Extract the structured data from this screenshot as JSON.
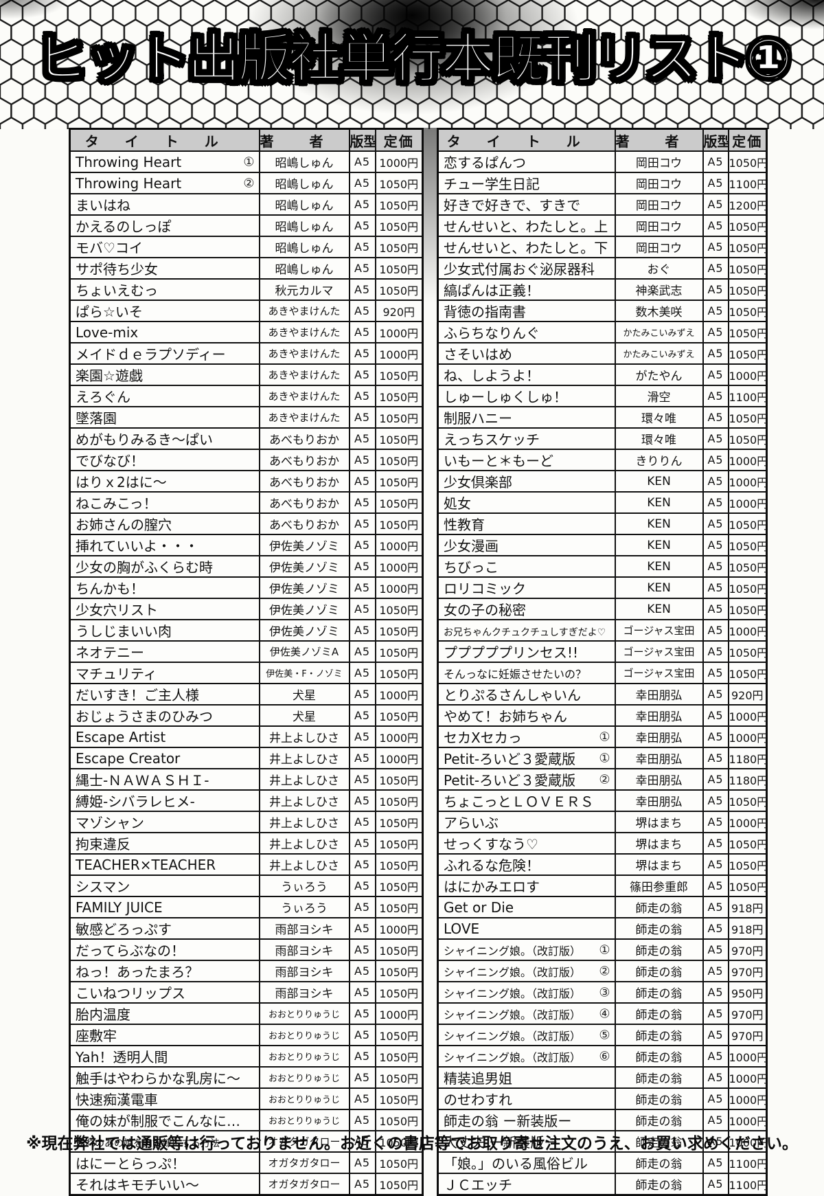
{
  "page_title": "ヒット出版社単行本既刊リスト①",
  "footer_note": "※現在弊社では通販等は行っておりません。お近くの書店等でお取り寄せ注文のうえ、お買い求めください。",
  "tables": {
    "headers": {
      "title": "タイトル",
      "author": "著者",
      "format": "版型",
      "price": "定価"
    },
    "left_rows": [
      {
        "title": "Throwing Heart",
        "vol": "①",
        "author": "昭嶋しゅん",
        "format": "A5",
        "price": "1000円"
      },
      {
        "title": "Throwing Heart",
        "vol": "②",
        "author": "昭嶋しゅん",
        "format": "A5",
        "price": "1050円"
      },
      {
        "title": "まいはね",
        "vol": "",
        "author": "昭嶋しゅん",
        "format": "A5",
        "price": "1050円"
      },
      {
        "title": "かえるのしっぽ",
        "vol": "",
        "author": "昭嶋しゅん",
        "format": "A5",
        "price": "1050円"
      },
      {
        "title": "モバ♡コイ",
        "vol": "",
        "author": "昭嶋しゅん",
        "format": "A5",
        "price": "1050円"
      },
      {
        "title": "サポ待ち少女",
        "vol": "",
        "author": "昭嶋しゅん",
        "format": "A5",
        "price": "1050円"
      },
      {
        "title": "ちょいえむっ",
        "vol": "",
        "author": "秋元カルマ",
        "format": "A5",
        "price": "1050円"
      },
      {
        "title": "ぱら☆いそ",
        "vol": "",
        "author": "あきやまけんた",
        "format": "A5",
        "price": "920円"
      },
      {
        "title": "Love-mix",
        "vol": "",
        "author": "あきやまけんた",
        "format": "A5",
        "price": "1000円"
      },
      {
        "title": "メイドｄｅラプソディー",
        "vol": "",
        "author": "あきやまけんた",
        "format": "A5",
        "price": "1000円"
      },
      {
        "title": "楽園☆遊戯",
        "vol": "",
        "author": "あきやまけんた",
        "format": "A5",
        "price": "1050円"
      },
      {
        "title": "えろぐん",
        "vol": "",
        "author": "あきやまけんた",
        "format": "A5",
        "price": "1050円"
      },
      {
        "title": "墜落園",
        "vol": "",
        "author": "あきやまけんた",
        "format": "A5",
        "price": "1050円"
      },
      {
        "title": "めがもりみるき〜ぱい",
        "vol": "",
        "author": "あべもりおか",
        "format": "A5",
        "price": "1050円"
      },
      {
        "title": "でびなび！",
        "vol": "",
        "author": "あべもりおか",
        "format": "A5",
        "price": "1050円"
      },
      {
        "title": "はりｘ2はに〜",
        "vol": "",
        "author": "あべもりおか",
        "format": "A5",
        "price": "1050円"
      },
      {
        "title": "ねこみこっ！",
        "vol": "",
        "author": "あべもりおか",
        "format": "A5",
        "price": "1050円"
      },
      {
        "title": "お姉さんの膣穴",
        "vol": "",
        "author": "あべもりおか",
        "format": "A5",
        "price": "1050円"
      },
      {
        "title": "挿れていいよ・・・",
        "vol": "",
        "author": "伊佐美ノゾミ",
        "format": "A5",
        "price": "1000円"
      },
      {
        "title": "少女の胸がふくらむ時",
        "vol": "",
        "author": "伊佐美ノゾミ",
        "format": "A5",
        "price": "1000円"
      },
      {
        "title": "ちんかも！",
        "vol": "",
        "author": "伊佐美ノゾミ",
        "format": "A5",
        "price": "1000円"
      },
      {
        "title": "少女穴リスト",
        "vol": "",
        "author": "伊佐美ノゾミ",
        "format": "A5",
        "price": "1050円"
      },
      {
        "title": "うしじまいい肉",
        "vol": "",
        "author": "伊佐美ノゾミ",
        "format": "A5",
        "price": "1050円"
      },
      {
        "title": "ネオテニー",
        "vol": "",
        "author": "伊佐美ノゾミA",
        "format": "A5",
        "price": "1050円"
      },
      {
        "title": "マチュリティ",
        "vol": "",
        "author": "伊佐美・F・ノゾミ",
        "format": "A5",
        "price": "1050円"
      },
      {
        "title": "だいすき！ご主人様",
        "vol": "",
        "author": "犬星",
        "format": "A5",
        "price": "1000円"
      },
      {
        "title": "おじょうさまのひみつ",
        "vol": "",
        "author": "犬星",
        "format": "A5",
        "price": "1050円"
      },
      {
        "title": "Escape Artist",
        "vol": "",
        "author": "井上よしひさ",
        "format": "A5",
        "price": "1000円"
      },
      {
        "title": "Escape Creator",
        "vol": "",
        "author": "井上よしひさ",
        "format": "A5",
        "price": "1000円"
      },
      {
        "title": "縄士-ＮＡＷＡＳＨＩ-",
        "vol": "",
        "author": "井上よしひさ",
        "format": "A5",
        "price": "1050円"
      },
      {
        "title": "縛姫-シバラレヒメ-",
        "vol": "",
        "author": "井上よしひさ",
        "format": "A5",
        "price": "1050円"
      },
      {
        "title": "マゾシャン",
        "vol": "",
        "author": "井上よしひさ",
        "format": "A5",
        "price": "1050円"
      },
      {
        "title": "拘束違反",
        "vol": "",
        "author": "井上よしひさ",
        "format": "A5",
        "price": "1050円"
      },
      {
        "title": "TEACHER×TEACHER",
        "vol": "",
        "author": "井上よしひさ",
        "format": "A5",
        "price": "1050円"
      },
      {
        "title": "シスマン",
        "vol": "",
        "author": "うぃろう",
        "format": "A5",
        "price": "1050円"
      },
      {
        "title": "FAMILY JUICE",
        "vol": "",
        "author": "うぃろう",
        "format": "A5",
        "price": "1050円"
      },
      {
        "title": "敏感どろっぷす",
        "vol": "",
        "author": "雨部ヨシキ",
        "format": "A5",
        "price": "1000円"
      },
      {
        "title": "だってらぶなの！",
        "vol": "",
        "author": "雨部ヨシキ",
        "format": "A5",
        "price": "1050円"
      },
      {
        "title": "ねっ！あったまろ？",
        "vol": "",
        "author": "雨部ヨシキ",
        "format": "A5",
        "price": "1050円"
      },
      {
        "title": "こいねつリップス",
        "vol": "",
        "author": "雨部ヨシキ",
        "format": "A5",
        "price": "1050円"
      },
      {
        "title": "胎内温度",
        "vol": "",
        "author": "おおとりりゅうじ",
        "format": "A5",
        "price": "1000円"
      },
      {
        "title": "座敷牢",
        "vol": "",
        "author": "おおとりりゅうじ",
        "format": "A5",
        "price": "1050円"
      },
      {
        "title": "Yah！透明人間",
        "vol": "",
        "author": "おおとりりゅうじ",
        "format": "A5",
        "price": "1050円"
      },
      {
        "title": "触手はやわらかな乳房に〜",
        "vol": "",
        "author": "おおとりりゅうじ",
        "format": "A5",
        "price": "1050円"
      },
      {
        "title": "快速痴漢電車",
        "vol": "",
        "author": "おおとりりゅうじ",
        "format": "A5",
        "price": "1050円"
      },
      {
        "title": "俺の妹が制服でこんなに…",
        "vol": "",
        "author": "おおとりりゅうじ",
        "format": "A5",
        "price": "1050円"
      },
      {
        "title": "憧れのあの娘を肉奴隷にする方法",
        "vol": "",
        "author": "オガタガタロー",
        "format": "A5",
        "price": "1050円"
      },
      {
        "title": "はにーとらっぷ！",
        "vol": "",
        "author": "オガタガタロー",
        "format": "A5",
        "price": "1050円"
      },
      {
        "title": "それはキモチいい〜",
        "vol": "",
        "author": "オガタガタロー",
        "format": "A5",
        "price": "1050円"
      }
    ],
    "right_rows": [
      {
        "title": "恋するぱんつ",
        "vol": "",
        "author": "岡田コウ",
        "format": "A5",
        "price": "1050円"
      },
      {
        "title": "チュー学生日記",
        "vol": "",
        "author": "岡田コウ",
        "format": "A5",
        "price": "1100円"
      },
      {
        "title": "好きで好きで、すきで",
        "vol": "",
        "author": "岡田コウ",
        "format": "A5",
        "price": "1200円"
      },
      {
        "title": "せんせいと、わたしと。上",
        "vol": "",
        "author": "岡田コウ",
        "format": "A5",
        "price": "1050円"
      },
      {
        "title": "せんせいと、わたしと。下",
        "vol": "",
        "author": "岡田コウ",
        "format": "A5",
        "price": "1050円"
      },
      {
        "title": "少女式付属おぐ泌尿器科",
        "vol": "",
        "author": "おぐ",
        "format": "A5",
        "price": "1050円"
      },
      {
        "title": "縞ぱんは正義！",
        "vol": "",
        "author": "神楽武志",
        "format": "A5",
        "price": "1050円"
      },
      {
        "title": "背徳の指南書",
        "vol": "",
        "author": "数木美咲",
        "format": "A5",
        "price": "1050円"
      },
      {
        "title": "ふらちなりんぐ",
        "vol": "",
        "author": "かたみこいみずえ",
        "format": "A5",
        "price": "1050円"
      },
      {
        "title": "さそいはめ",
        "vol": "",
        "author": "かたみこいみずえ",
        "format": "A5",
        "price": "1050円"
      },
      {
        "title": "ね、しようよ！",
        "vol": "",
        "author": "がたやん",
        "format": "A5",
        "price": "1000円"
      },
      {
        "title": "しゅーしゅくしゅ！",
        "vol": "",
        "author": "滑空",
        "format": "A5",
        "price": "1100円"
      },
      {
        "title": "制服ハニー",
        "vol": "",
        "author": "環々唯",
        "format": "A5",
        "price": "1050円"
      },
      {
        "title": "えっちスケッチ",
        "vol": "",
        "author": "環々唯",
        "format": "A5",
        "price": "1050円"
      },
      {
        "title": "いもーと＊もーど",
        "vol": "",
        "author": "きりりん",
        "format": "A5",
        "price": "1000円"
      },
      {
        "title": "少女倶楽部",
        "vol": "",
        "author": "KEN",
        "format": "A5",
        "price": "1000円"
      },
      {
        "title": "処女",
        "vol": "",
        "author": "KEN",
        "format": "A5",
        "price": "1000円"
      },
      {
        "title": "性教育",
        "vol": "",
        "author": "KEN",
        "format": "A5",
        "price": "1050円"
      },
      {
        "title": "少女漫画",
        "vol": "",
        "author": "KEN",
        "format": "A5",
        "price": "1050円"
      },
      {
        "title": "ちびっこ",
        "vol": "",
        "author": "KEN",
        "format": "A5",
        "price": "1050円"
      },
      {
        "title": "ロリコミック",
        "vol": "",
        "author": "KEN",
        "format": "A5",
        "price": "1050円"
      },
      {
        "title": "女の子の秘密",
        "vol": "",
        "author": "KEN",
        "format": "A5",
        "price": "1050円"
      },
      {
        "title": "お兄ちゃんクチュクチュしすぎだよ♡",
        "vol": "",
        "author": "ゴージャス宝田",
        "format": "A5",
        "price": "1000円"
      },
      {
        "title": "プププププリンセス!!",
        "vol": "",
        "author": "ゴージャス宝田",
        "format": "A5",
        "price": "1050円"
      },
      {
        "title": "そんっなに妊娠させたいの？",
        "vol": "",
        "author": "ゴージャス宝田",
        "format": "A5",
        "price": "1050円"
      },
      {
        "title": "とりぷるさんしゃいん",
        "vol": "",
        "author": "幸田朋弘",
        "format": "A5",
        "price": "920円"
      },
      {
        "title": "やめて！お姉ちゃん",
        "vol": "",
        "author": "幸田朋弘",
        "format": "A5",
        "price": "1000円"
      },
      {
        "title": "セカXセカっ",
        "vol": "①",
        "author": "幸田朋弘",
        "format": "A5",
        "price": "1000円"
      },
      {
        "title": "Petit-ろいど３愛蔵版",
        "vol": "①",
        "author": "幸田朋弘",
        "format": "A5",
        "price": "1180円"
      },
      {
        "title": "Petit-ろいど３愛蔵版",
        "vol": "②",
        "author": "幸田朋弘",
        "format": "A5",
        "price": "1180円"
      },
      {
        "title": "ちょこっとＬＯＶＥＲＳ",
        "vol": "",
        "author": "幸田朋弘",
        "format": "A5",
        "price": "1050円"
      },
      {
        "title": "アらいぶ",
        "vol": "",
        "author": "堺はまち",
        "format": "A5",
        "price": "1000円"
      },
      {
        "title": "せっくすなう♡",
        "vol": "",
        "author": "堺はまち",
        "format": "A5",
        "price": "1050円"
      },
      {
        "title": "ふれるな危険！",
        "vol": "",
        "author": "堺はまち",
        "format": "A5",
        "price": "1050円"
      },
      {
        "title": "はにかみエロす",
        "vol": "",
        "author": "篠田参重郎",
        "format": "A5",
        "price": "1050円"
      },
      {
        "title": "Get or Die",
        "vol": "",
        "author": "師走の翁",
        "format": "A5",
        "price": "918円"
      },
      {
        "title": "LOVE",
        "vol": "",
        "author": "師走の翁",
        "format": "A5",
        "price": "918円"
      },
      {
        "title": "シャイニング娘。（改訂版）",
        "vol": "①",
        "author": "師走の翁",
        "format": "A5",
        "price": "970円"
      },
      {
        "title": "シャイニング娘。（改訂版）",
        "vol": "②",
        "author": "師走の翁",
        "format": "A5",
        "price": "970円"
      },
      {
        "title": "シャイニング娘。（改訂版）",
        "vol": "③",
        "author": "師走の翁",
        "format": "A5",
        "price": "950円"
      },
      {
        "title": "シャイニング娘。（改訂版）",
        "vol": "④",
        "author": "師走の翁",
        "format": "A5",
        "price": "970円"
      },
      {
        "title": "シャイニング娘。（改訂版）",
        "vol": "⑤",
        "author": "師走の翁",
        "format": "A5",
        "price": "970円"
      },
      {
        "title": "シャイニング娘。（改訂版）",
        "vol": "⑥",
        "author": "師走の翁",
        "format": "A5",
        "price": "1000円"
      },
      {
        "title": "精装追男姐",
        "vol": "",
        "author": "師走の翁",
        "format": "A5",
        "price": "1000円"
      },
      {
        "title": "のせわすれ",
        "vol": "",
        "author": "師走の翁",
        "format": "A5",
        "price": "1000円"
      },
      {
        "title": "師走の翁 ー新装版ー",
        "vol": "",
        "author": "師走の翁",
        "format": "A5",
        "price": "1000円"
      },
      {
        "title": "大丈夫 ー新装版ー",
        "vol": "",
        "author": "師走の翁",
        "format": "A5",
        "price": "1000円"
      },
      {
        "title": "「娘。」のいる風俗ビル",
        "vol": "",
        "author": "師走の翁",
        "format": "A5",
        "price": "1100円"
      },
      {
        "title": "ＪＣエッチ",
        "vol": "",
        "author": "師走の翁",
        "format": "A5",
        "price": "1100円"
      }
    ]
  }
}
